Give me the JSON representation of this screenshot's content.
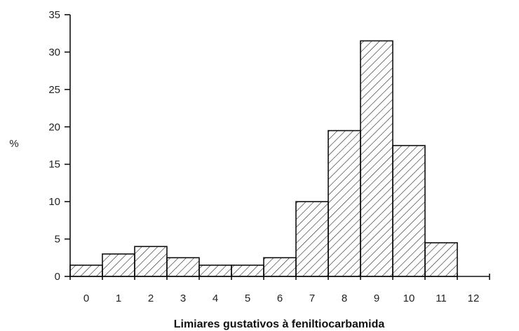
{
  "chart_data": {
    "type": "bar",
    "xlabel": "Limiares gustativos à feniltiocarbamida",
    "ylabel": "%",
    "categories": [
      "0",
      "1",
      "2",
      "3",
      "4",
      "5",
      "6",
      "7",
      "8",
      "9",
      "10",
      "11",
      "12"
    ],
    "values": [
      1.5,
      3,
      4,
      2.5,
      1.5,
      1.5,
      2.5,
      10,
      19.5,
      31.5,
      17.5,
      4.5,
      null
    ],
    "yticks": [
      0,
      5,
      10,
      15,
      20,
      25,
      30,
      35
    ],
    "ylim": [
      0,
      35
    ],
    "bar_fill": "hatched",
    "bar_stroke": "#111111",
    "grid": false,
    "legend": "none"
  }
}
